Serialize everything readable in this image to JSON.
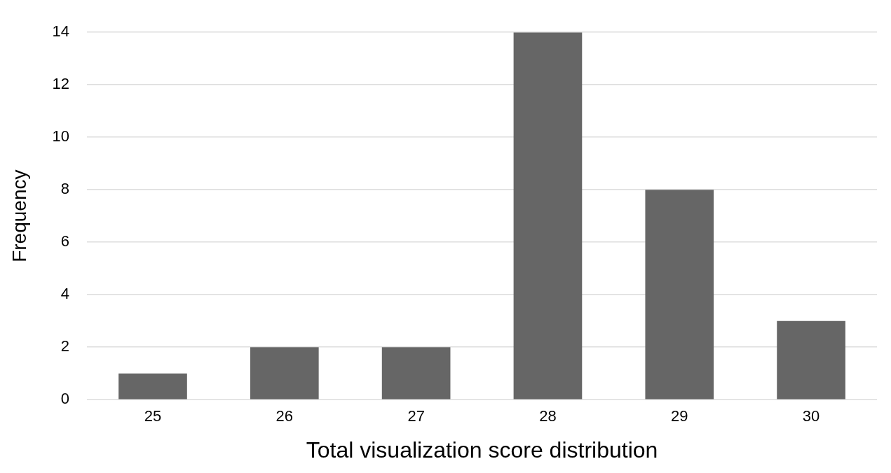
{
  "chart_data": {
    "type": "bar",
    "xlabel": "Total visualization score distribution",
    "ylabel": "Frequency",
    "categories": [
      "25",
      "26",
      "27",
      "28",
      "29",
      "30"
    ],
    "values": [
      1,
      2,
      2,
      14,
      8,
      3
    ],
    "color": "#666666",
    "ylim": [
      0,
      14
    ],
    "yticks": [
      0,
      2,
      4,
      6,
      8,
      10,
      12,
      14
    ],
    "grid": "y",
    "legend": false
  }
}
